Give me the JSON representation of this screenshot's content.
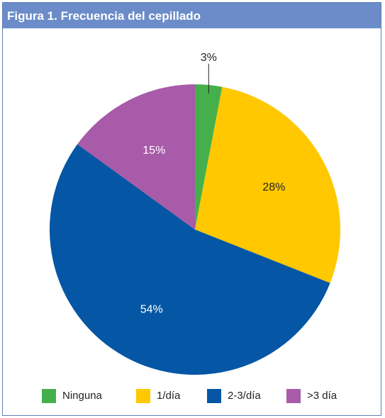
{
  "figure": {
    "label": "Figura 1.",
    "title": " Frecuencia del cepillado"
  },
  "chart_data": {
    "type": "pie",
    "categories": [
      "Ninguna",
      "1/día",
      "2-3/día",
      ">3 día"
    ],
    "values": [
      3,
      28,
      54,
      15
    ],
    "data_labels": [
      "3%",
      "28%",
      "54%",
      "15%"
    ],
    "colors": [
      "#45b04b",
      "#ffc800",
      "#0556a5",
      "#a85ba8"
    ],
    "label_colors": [
      "#222222",
      "#222222",
      "#ffffff",
      "#ffffff"
    ],
    "legend_position": "bottom",
    "title": "Frecuencia del cepillado"
  }
}
